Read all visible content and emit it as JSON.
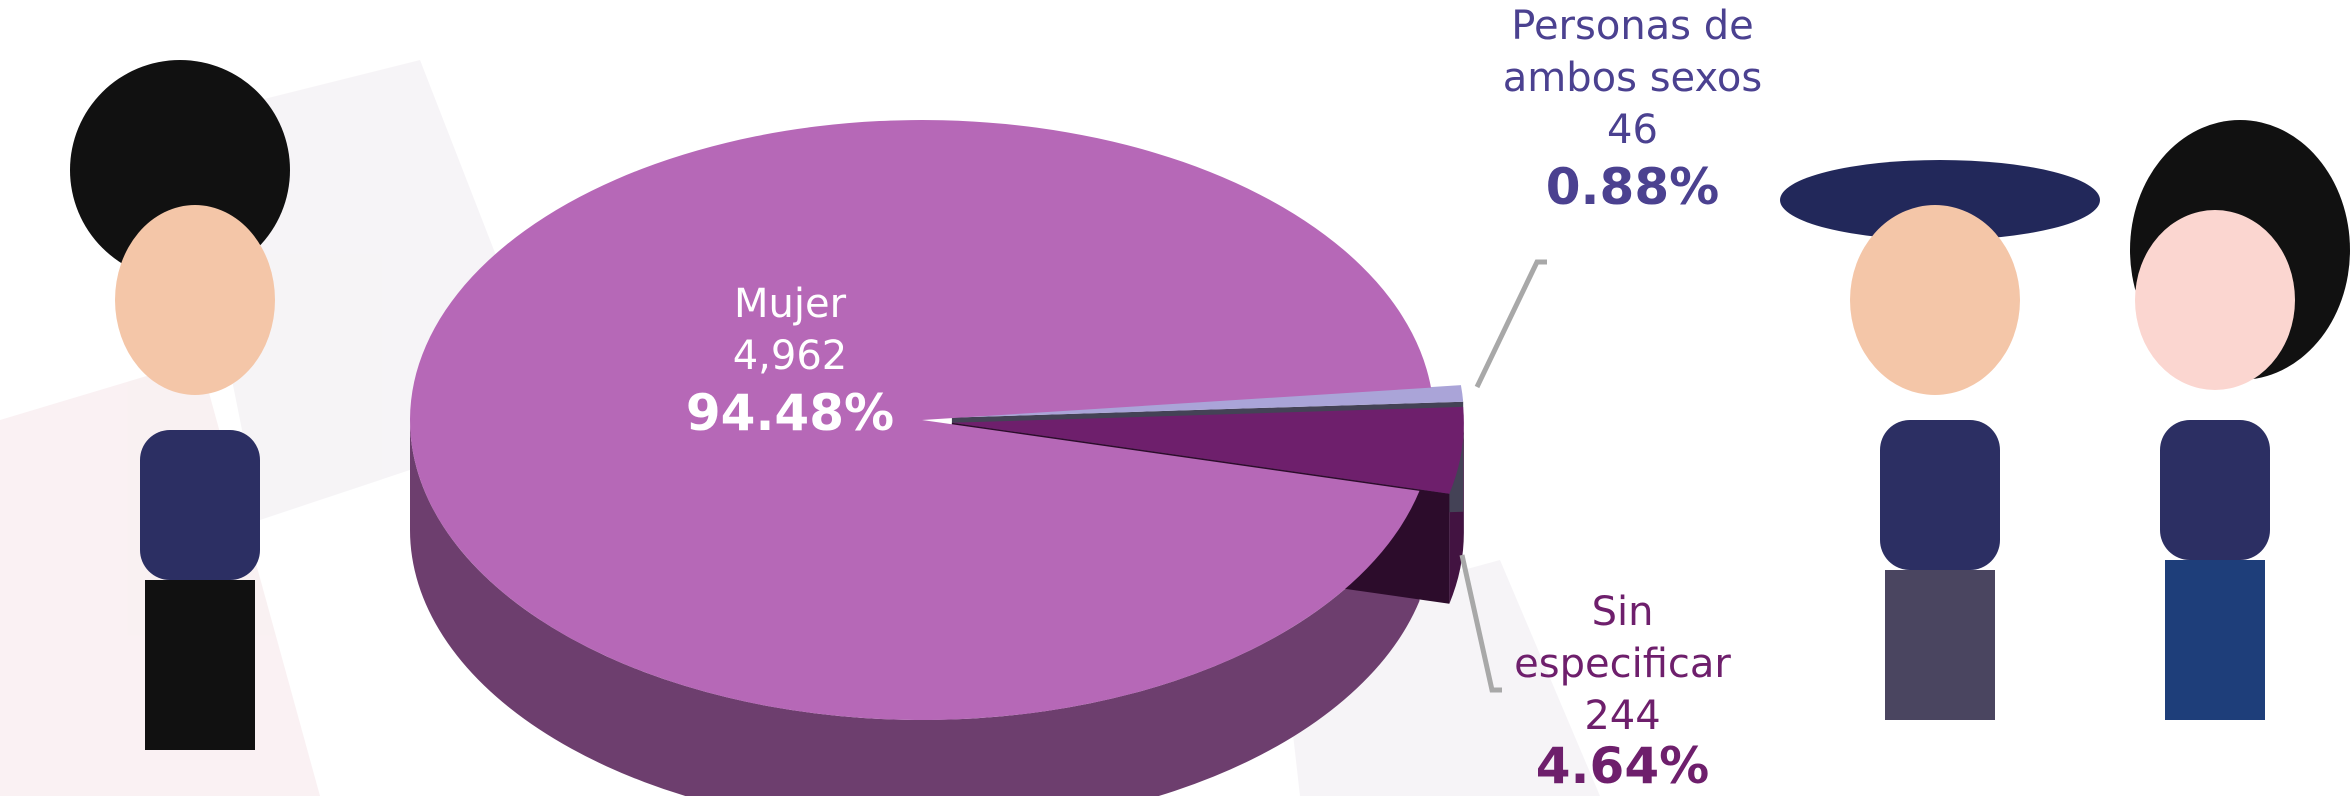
{
  "chart_data": {
    "type": "pie",
    "categories": [
      "Mujer",
      "Sin especificar",
      "Personas de ambos sexos"
    ],
    "counts": [
      4962,
      244,
      46
    ],
    "count_labels": [
      "4,962",
      "244",
      "46"
    ],
    "values": [
      94.48,
      4.64,
      0.88
    ],
    "value_labels": [
      "94.48%",
      "4.64%",
      "0.88%"
    ],
    "colors": [
      "#b668b7",
      "#6e1f6c",
      "#aaa4d8"
    ]
  }
}
